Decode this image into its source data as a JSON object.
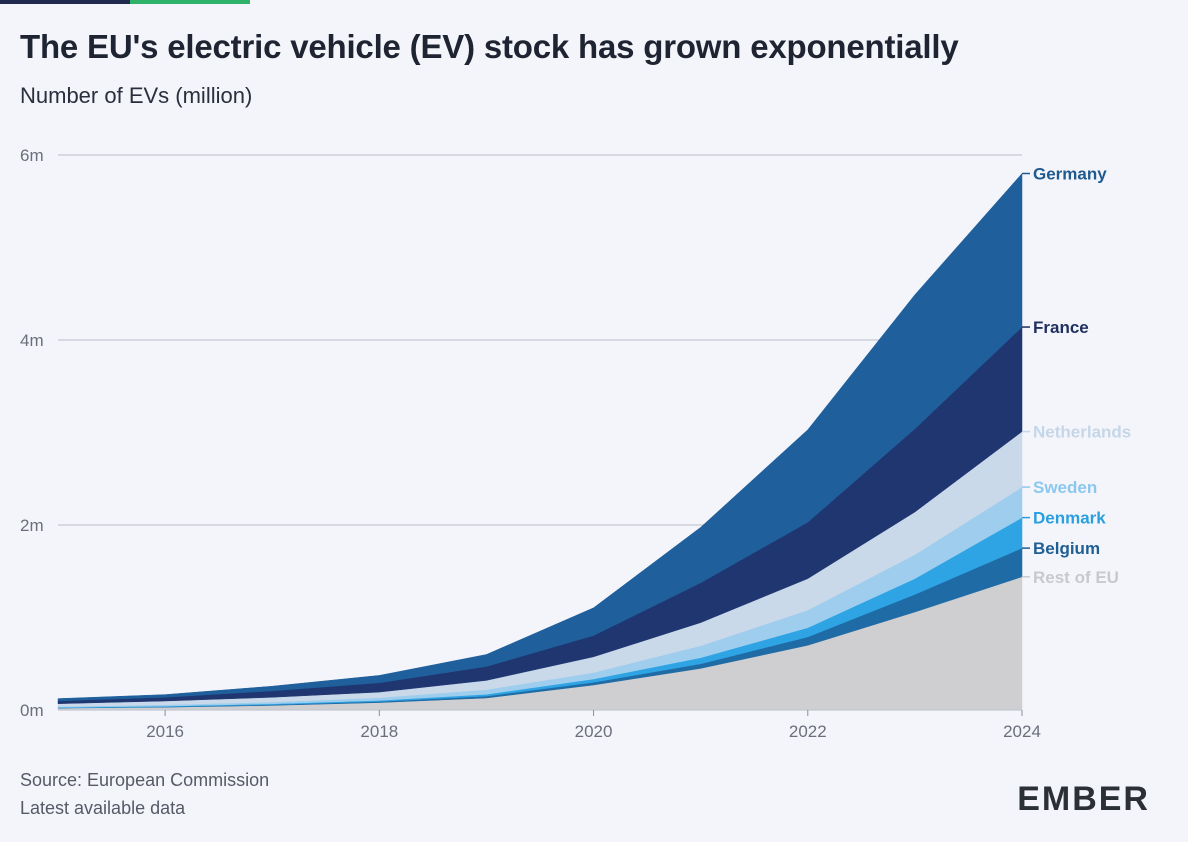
{
  "header": {
    "title": "The EU's electric vehicle (EV) stock has grown exponentially",
    "subtitle": "Number of EVs (million)"
  },
  "footer": {
    "source": "Source: European Commission",
    "note": "Latest available data"
  },
  "brand": {
    "logo_text": "EMBER",
    "accent_dark": "#1f2a4e",
    "accent_green": "#2fb36b"
  },
  "chart_data": {
    "type": "area",
    "stacked": true,
    "x": [
      2015,
      2016,
      2017,
      2018,
      2019,
      2020,
      2021,
      2022,
      2023,
      2024
    ],
    "x_ticks": [
      2016,
      2018,
      2020,
      2022,
      2024
    ],
    "y_ticks": [
      0,
      2,
      4,
      6
    ],
    "y_tick_labels": [
      "0m",
      "2m",
      "4m",
      "6m"
    ],
    "ylim": [
      0,
      6
    ],
    "xlim": [
      2015,
      2024
    ],
    "grid": "horizontal",
    "legend": "direct-labels-right",
    "series": [
      {
        "name": "Rest of EU",
        "color": "#cfcfd2",
        "label_color": "#c9c9cc",
        "values": [
          0.02,
          0.03,
          0.05,
          0.08,
          0.13,
          0.27,
          0.45,
          0.7,
          1.06,
          1.44
        ]
      },
      {
        "name": "Belgium",
        "color": "#1f6ba5",
        "label_color": "#1f5f94",
        "values": [
          0.003,
          0.005,
          0.008,
          0.012,
          0.02,
          0.03,
          0.05,
          0.09,
          0.19,
          0.31
        ]
      },
      {
        "name": "Denmark",
        "color": "#2fa4e4",
        "label_color": "#2a9fe0",
        "values": [
          0.005,
          0.007,
          0.009,
          0.012,
          0.02,
          0.035,
          0.065,
          0.1,
          0.17,
          0.33
        ]
      },
      {
        "name": "Sweden",
        "color": "#9fcdee",
        "label_color": "#8cc8ee",
        "values": [
          0.01,
          0.015,
          0.02,
          0.03,
          0.05,
          0.07,
          0.13,
          0.19,
          0.26,
          0.33
        ]
      },
      {
        "name": "Netherlands",
        "color": "#c9d9ea",
        "label_color": "#c5d6e8",
        "values": [
          0.03,
          0.04,
          0.05,
          0.06,
          0.1,
          0.17,
          0.25,
          0.34,
          0.46,
          0.6
        ]
      },
      {
        "name": "France",
        "color": "#1f3671",
        "label_color": "#1f2f5e",
        "values": [
          0.03,
          0.04,
          0.07,
          0.1,
          0.15,
          0.23,
          0.43,
          0.61,
          0.9,
          1.13
        ]
      },
      {
        "name": "Germany",
        "color": "#1e5f9c",
        "label_color": "#1f5a90",
        "values": [
          0.025,
          0.03,
          0.05,
          0.08,
          0.13,
          0.3,
          0.6,
          1.0,
          1.45,
          1.66
        ]
      }
    ]
  }
}
